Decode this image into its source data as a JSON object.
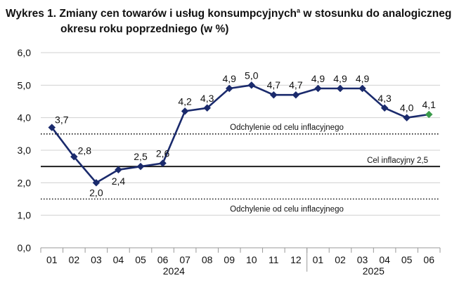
{
  "title": {
    "prefix": "Wykres 1. Zmiany cen towarów i usług konsumpcyjnych",
    "superscript": "a",
    "suffix": " w stosunku do analogicznego",
    "line2": "okresu roku poprzedniego (w %)"
  },
  "chart_data": {
    "type": "line",
    "categories": [
      "01",
      "02",
      "03",
      "04",
      "05",
      "06",
      "07",
      "08",
      "09",
      "10",
      "11",
      "12",
      "01",
      "02",
      "03",
      "04",
      "05",
      "06"
    ],
    "year_labels": [
      {
        "label": "2024",
        "from_index": 0,
        "to_index": 11
      },
      {
        "label": "2025",
        "from_index": 12,
        "to_index": 17
      }
    ],
    "series": [
      {
        "values": [
          3.7,
          2.8,
          2.0,
          2.4,
          2.5,
          2.6,
          4.2,
          4.3,
          4.9,
          5.0,
          4.7,
          4.7,
          4.9,
          4.9,
          4.9,
          4.3,
          4.0,
          4.1
        ],
        "labels": [
          "3,7",
          "2,8",
          "2,0",
          "2,4",
          "2,5",
          "2,6",
          "4,2",
          "4,3",
          "4,9",
          "5,0",
          "4,7",
          "4,7",
          "4,9",
          "4,9",
          "4,9",
          "4,3",
          "4,0",
          "4,1"
        ],
        "color": "#1a2a6c",
        "last_point_color": "#3a9a4a"
      }
    ],
    "ylim": [
      0,
      6
    ],
    "yticks": [
      "0,0",
      "1,0",
      "2,0",
      "3,0",
      "4,0",
      "5,0",
      "6,0"
    ],
    "grid": true,
    "reference_lines": [
      {
        "value": 2.5,
        "style": "solid",
        "label": "Cel inflacyjny 2,5"
      },
      {
        "value": 3.5,
        "style": "dotted",
        "label": "Odchylenie od celu inflacyjnego"
      },
      {
        "value": 1.5,
        "style": "dotted",
        "label": "Odchylenie od celu inflacyjnego"
      }
    ]
  },
  "colors": {
    "line": "#1a2a6c",
    "last_point": "#3a9a4a",
    "grid": "#d0d0d0",
    "reference": "#111111"
  }
}
